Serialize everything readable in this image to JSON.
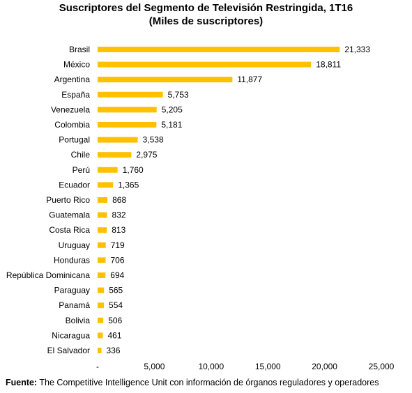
{
  "chart_data": {
    "type": "bar",
    "orientation": "horizontal",
    "title": "Suscriptores del Segmento de Televisión Restringida, 1T16",
    "subtitle": "(Miles de suscriptores)",
    "xlabel": "",
    "ylabel": "",
    "xlim": [
      0,
      25000
    ],
    "ticks": [
      0,
      5000,
      10000,
      15000,
      20000,
      25000
    ],
    "tick_labels": [
      "-",
      "5,000",
      "10,000",
      "15,000",
      "20,000",
      "25,000"
    ],
    "grid": false,
    "legend": "none",
    "bar_color": "#FFC000",
    "categories": [
      "Brasil",
      "México",
      "Argentina",
      "España",
      "Venezuela",
      "Colombia",
      "Portugal",
      "Chile",
      "Perú",
      "Ecuador",
      "Puerto Rico",
      "Guatemala",
      "Costa Rica",
      "Uruguay",
      "Honduras",
      "República Dominicana",
      "Paraguay",
      "Panamá",
      "Bolivia",
      "Nicaragua",
      "El Salvador"
    ],
    "values": [
      21333,
      18811,
      11877,
      5753,
      5205,
      5181,
      3538,
      2975,
      1760,
      1365,
      868,
      832,
      813,
      719,
      706,
      694,
      565,
      554,
      506,
      461,
      336
    ],
    "value_labels": [
      "21,333",
      "18,811",
      "11,877",
      "5,753",
      "5,205",
      "5,181",
      "3,538",
      "2,975",
      "1,760",
      "1,365",
      "868",
      "832",
      "813",
      "719",
      "706",
      "694",
      "565",
      "554",
      "506",
      "461",
      "336"
    ]
  },
  "source": {
    "label": "Fuente:",
    "text": " The Competitive Intelligence Unit con información de órganos reguladores y operadores"
  }
}
